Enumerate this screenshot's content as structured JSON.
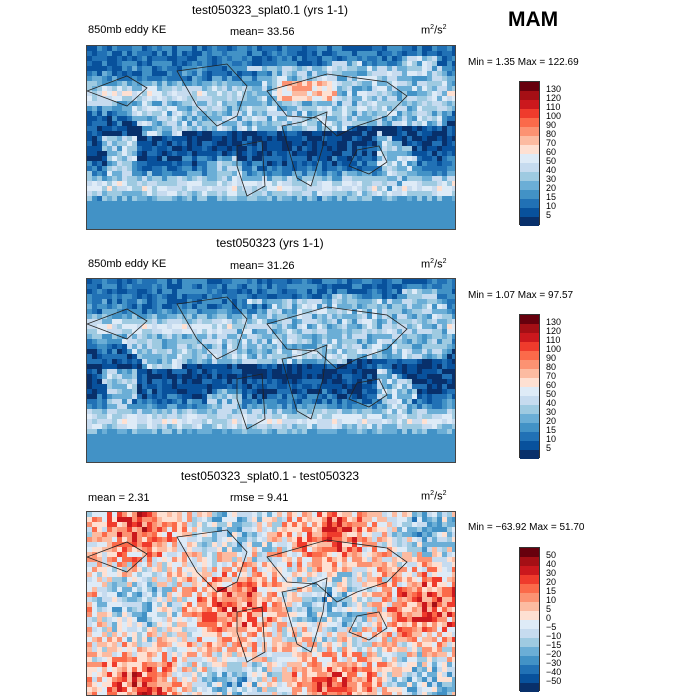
{
  "season": "MAM",
  "units_main": "m",
  "units_sup": "2",
  "units_tail": "/s",
  "units_sup2": "2",
  "panels": [
    {
      "title": "test050323_splat0.1 (yrs 1-1)",
      "left_label": "850mb eddy KE",
      "center_label": "mean=  33.56",
      "minmax": "Min =    1.35 Max = 122.69",
      "kind": "abs",
      "levels": [
        "130",
        "120",
        "110",
        "100",
        "90",
        "80",
        "70",
        "60",
        "50",
        "40",
        "30",
        "20",
        "15",
        "10",
        "5"
      ],
      "colors": [
        "#67000d",
        "#a50f15",
        "#cb181d",
        "#ef3b2c",
        "#fb6a4a",
        "#fc9272",
        "#fcbba1",
        "#fee0d2",
        "#deebf7",
        "#c6dbef",
        "#9ecae1",
        "#6baed6",
        "#4292c6",
        "#2171b5",
        "#08519c",
        "#08306b"
      ]
    },
    {
      "title": "test050323 (yrs 1-1)",
      "left_label": "850mb eddy KE",
      "center_label": "mean=  31.26",
      "minmax": "Min =    1.07 Max =  97.57",
      "kind": "abs",
      "levels": [
        "130",
        "120",
        "110",
        "100",
        "90",
        "80",
        "70",
        "60",
        "50",
        "40",
        "30",
        "20",
        "15",
        "10",
        "5"
      ],
      "colors": [
        "#67000d",
        "#a50f15",
        "#cb181d",
        "#ef3b2c",
        "#fb6a4a",
        "#fc9272",
        "#fcbba1",
        "#fee0d2",
        "#deebf7",
        "#c6dbef",
        "#9ecae1",
        "#6baed6",
        "#4292c6",
        "#2171b5",
        "#08519c",
        "#08306b"
      ]
    },
    {
      "title": "test050323_splat0.1 - test050323",
      "left_label": "mean =    2.31",
      "center_label": "rmse =    9.41",
      "minmax": "Min = −63.92 Max =  51.70",
      "kind": "diff",
      "levels": [
        "50",
        "40",
        "30",
        "20",
        "15",
        "10",
        "5",
        "0",
        "−5",
        "−10",
        "−15",
        "−20",
        "−30",
        "−40",
        "−50"
      ],
      "colors": [
        "#67000d",
        "#a50f15",
        "#cb181d",
        "#ef3b2c",
        "#fb6a4a",
        "#fc9272",
        "#fcbba1",
        "#fee0d2",
        "#deebf7",
        "#c6dbef",
        "#9ecae1",
        "#6baed6",
        "#4292c6",
        "#2171b5",
        "#08519c",
        "#08306b"
      ]
    }
  ]
}
